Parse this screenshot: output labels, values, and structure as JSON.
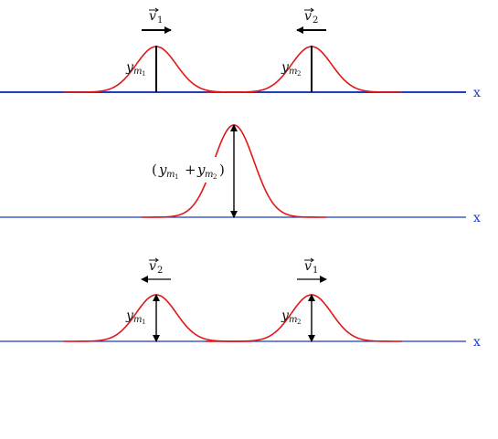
{
  "colors": {
    "axis": "#1f3fbf",
    "pulse": "#e01818",
    "arrow": "#000000",
    "label": "#111111"
  },
  "labels": {
    "axis_x": "x",
    "v1": "v",
    "v1_sub": "1",
    "v2": "v",
    "v2_sub": "2",
    "ym": "y",
    "m": "m",
    "sub1": "1",
    "sub2": "2",
    "paren_open": "(",
    "paren_close": ")",
    "plus": "+"
  }
}
